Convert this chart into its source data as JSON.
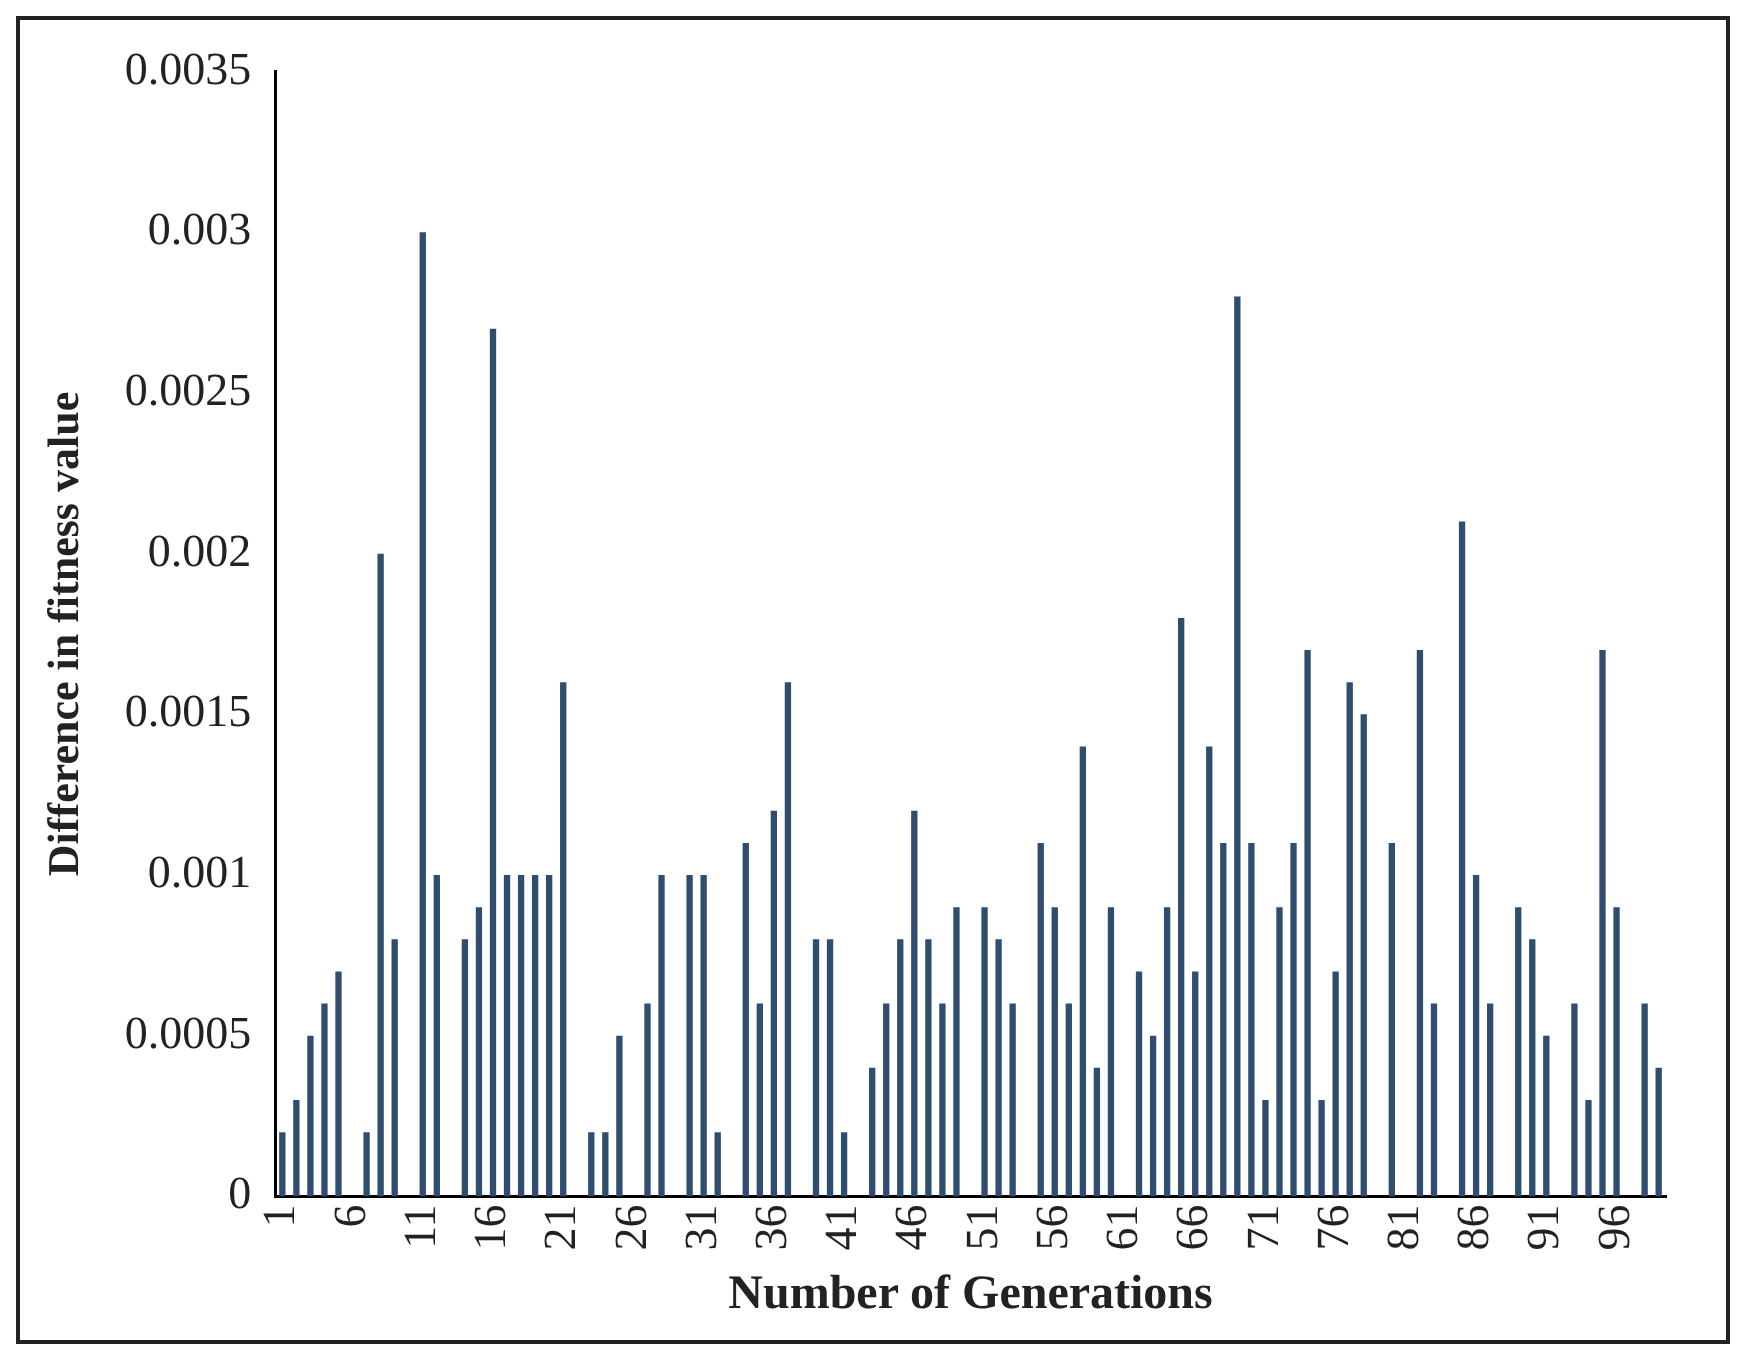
{
  "chart_data": {
    "type": "bar",
    "xlabel": "Number of Generations",
    "ylabel": "Difference in fitness value",
    "categories": [
      "1",
      null,
      null,
      null,
      null,
      "6",
      null,
      null,
      null,
      null,
      "11",
      null,
      null,
      null,
      null,
      "16",
      null,
      null,
      null,
      null,
      "21",
      null,
      null,
      null,
      null,
      "26",
      null,
      null,
      null,
      null,
      "31",
      null,
      null,
      null,
      null,
      "36",
      null,
      null,
      null,
      null,
      "41",
      null,
      null,
      null,
      null,
      "46",
      null,
      null,
      null,
      null,
      "51",
      null,
      null,
      null,
      null,
      "56",
      null,
      null,
      null,
      null,
      "61",
      null,
      null,
      null,
      null,
      "66",
      null,
      null,
      null,
      null,
      "71",
      null,
      null,
      null,
      null,
      "76",
      null,
      null,
      null,
      null,
      "81",
      null,
      null,
      null,
      null,
      "86",
      null,
      null,
      null,
      null,
      "91",
      null,
      null,
      null,
      null,
      "96",
      null,
      null,
      null
    ],
    "values": [
      0.0002,
      0.0003,
      0.0005,
      0.0006,
      0.0007,
      0,
      0.0002,
      0.002,
      0.0008,
      0,
      0.003,
      0.001,
      0,
      0.0008,
      0.0009,
      0.0027,
      0.001,
      0.001,
      0.001,
      0.001,
      0.0016,
      0,
      0.0002,
      0.0002,
      0.0005,
      0,
      0.0006,
      0.001,
      0,
      0.001,
      0.001,
      0.0002,
      0,
      0.0011,
      0.0006,
      0.0012,
      0.0016,
      0,
      0.0008,
      0.0008,
      0.0002,
      0,
      0.0004,
      0.0006,
      0.0008,
      0.0012,
      0.0008,
      0.0006,
      0.0009,
      0,
      0.0009,
      0.0008,
      0.0006,
      0,
      0.0011,
      0.0009,
      0.0006,
      0.0014,
      0.0004,
      0.0009,
      0,
      0.0007,
      0.0005,
      0.0009,
      0.0018,
      0.0007,
      0.0014,
      0.0011,
      0.0028,
      0.0011,
      0.0003,
      0.0009,
      0.0011,
      0.0017,
      0.0003,
      0.0007,
      0.0016,
      0.0015,
      0,
      0.0011,
      0,
      0.0017,
      0.0006,
      0,
      0.0021,
      0.001,
      0.0006,
      0,
      0.0009,
      0.0008,
      0.0005,
      0,
      0.0006,
      0.0003,
      0.0017,
      0.0009,
      0,
      0.0006,
      0.0004
    ],
    "color": "#2f4d6e",
    "ylim": [
      0,
      0.0035
    ],
    "yticks": [
      0,
      0.0005,
      0.001,
      0.0015,
      0.002,
      0.0025,
      0.003,
      0.0035
    ],
    "grid": false
  }
}
